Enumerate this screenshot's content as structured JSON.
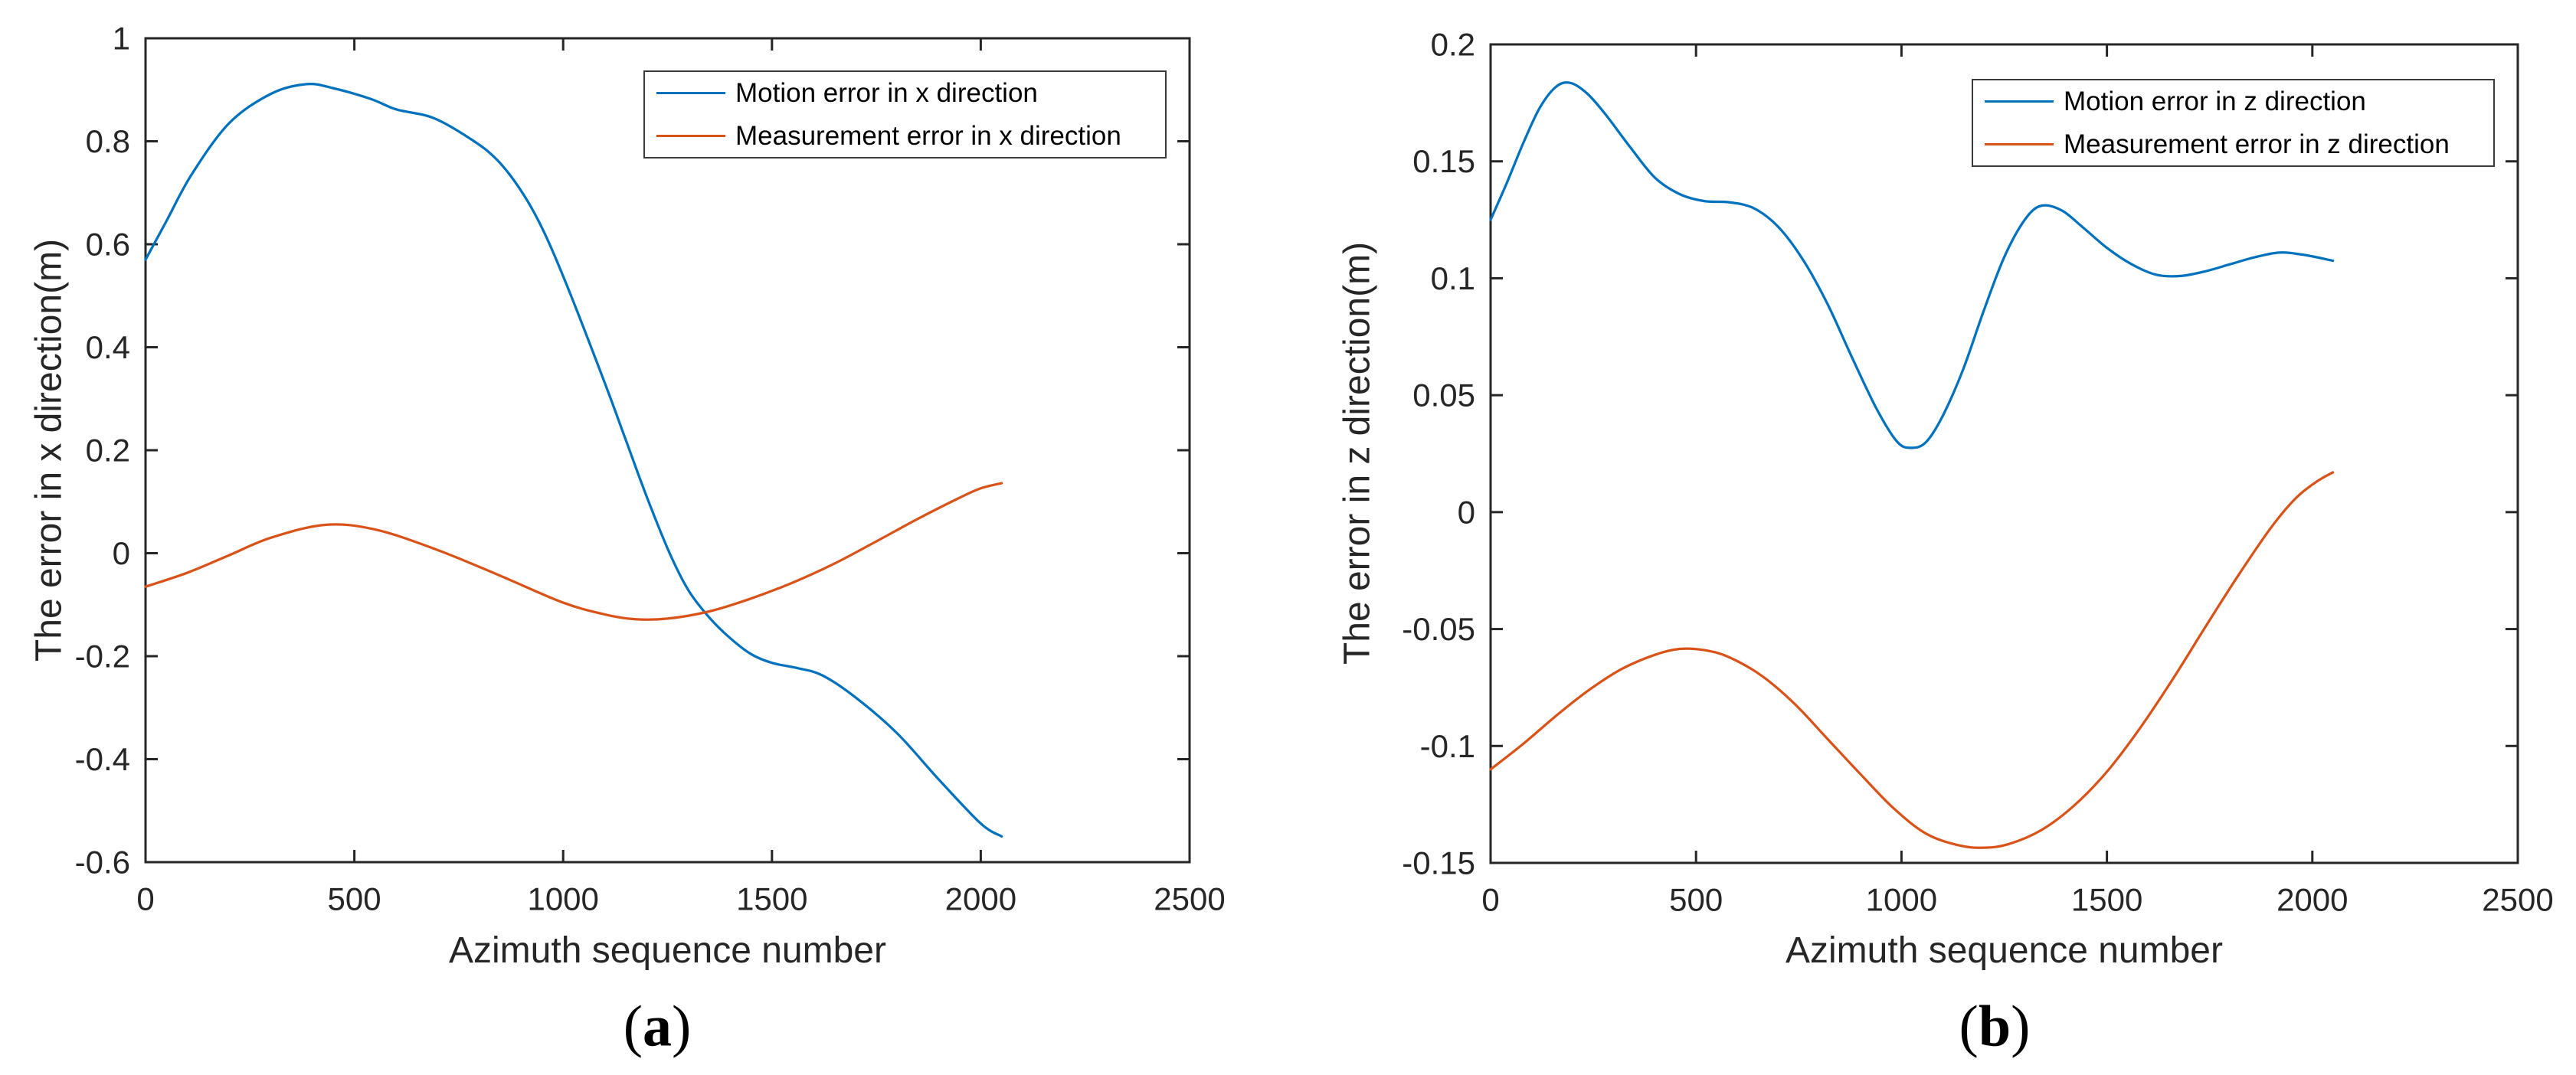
{
  "figure": {
    "background": "#ffffff",
    "panels": [
      {
        "open": "(",
        "letter": "a",
        "close": ")"
      },
      {
        "open": "(",
        "letter": "b",
        "close": ")"
      }
    ]
  },
  "colors": {
    "motion_line": "#0072BD",
    "measurement_line": "#D95319",
    "axis": "#262626",
    "text": "#262626"
  },
  "chart_data": [
    {
      "type": "line",
      "title": "",
      "xlabel": "Azimuth sequence number",
      "ylabel": "The error in x direction(m)",
      "xlim": [
        0,
        2500
      ],
      "ylim": [
        -0.6,
        1
      ],
      "xticks": [
        0,
        500,
        1000,
        1500,
        2000,
        2500
      ],
      "yticks": [
        -0.6,
        -0.4,
        -0.2,
        0,
        0.2,
        0.4,
        0.6,
        0.8,
        1
      ],
      "grid": false,
      "legend_position": "top-right",
      "series": [
        {
          "name": "Motion error in x direction",
          "color": "#0072BD",
          "points": [
            [
              0,
              0.57
            ],
            [
              50,
              0.645
            ],
            [
              110,
              0.735
            ],
            [
              200,
              0.835
            ],
            [
              300,
              0.892
            ],
            [
              385,
              0.911
            ],
            [
              450,
              0.903
            ],
            [
              540,
              0.882
            ],
            [
              600,
              0.862
            ],
            [
              690,
              0.845
            ],
            [
              783,
              0.802
            ],
            [
              844,
              0.762
            ],
            [
              904,
              0.698
            ],
            [
              954,
              0.624
            ],
            [
              1014,
              0.51
            ],
            [
              1100,
              0.33
            ],
            [
              1150,
              0.22
            ],
            [
              1200,
              0.11
            ],
            [
              1255,
              0.0
            ],
            [
              1300,
              -0.072
            ],
            [
              1350,
              -0.125
            ],
            [
              1400,
              -0.165
            ],
            [
              1450,
              -0.196
            ],
            [
              1500,
              -0.213
            ],
            [
              1560,
              -0.223
            ],
            [
              1620,
              -0.237
            ],
            [
              1700,
              -0.28
            ],
            [
              1800,
              -0.35
            ],
            [
              1900,
              -0.44
            ],
            [
              2000,
              -0.525
            ],
            [
              2050,
              -0.55
            ]
          ]
        },
        {
          "name": "Measurement error in x direction",
          "color": "#D95319",
          "points": [
            [
              0,
              -0.065
            ],
            [
              100,
              -0.038
            ],
            [
              200,
              -0.004
            ],
            [
              300,
              0.03
            ],
            [
              430,
              0.055
            ],
            [
              550,
              0.046
            ],
            [
              700,
              0.006
            ],
            [
              850,
              -0.044
            ],
            [
              1000,
              -0.096
            ],
            [
              1100,
              -0.119
            ],
            [
              1170,
              -0.128
            ],
            [
              1250,
              -0.127
            ],
            [
              1350,
              -0.113
            ],
            [
              1450,
              -0.088
            ],
            [
              1550,
              -0.057
            ],
            [
              1650,
              -0.02
            ],
            [
              1750,
              0.023
            ],
            [
              1850,
              0.067
            ],
            [
              1950,
              0.108
            ],
            [
              2000,
              0.126
            ],
            [
              2050,
              0.136
            ]
          ]
        }
      ]
    },
    {
      "type": "line",
      "title": "",
      "xlabel": "Azimuth sequence number",
      "ylabel": "The error in z direction(m)",
      "xlim": [
        0,
        2500
      ],
      "ylim": [
        -0.15,
        0.2
      ],
      "xticks": [
        0,
        500,
        1000,
        1500,
        2000,
        2500
      ],
      "yticks": [
        -0.15,
        -0.1,
        -0.05,
        0,
        0.05,
        0.1,
        0.15,
        0.2
      ],
      "grid": false,
      "legend_position": "top-right",
      "series": [
        {
          "name": "Motion error in z direction",
          "color": "#0072BD",
          "points": [
            [
              0,
              0.125
            ],
            [
              40,
              0.141
            ],
            [
              80,
              0.158
            ],
            [
              120,
              0.173
            ],
            [
              160,
              0.182
            ],
            [
              195,
              0.1835
            ],
            [
              235,
              0.179
            ],
            [
              280,
              0.17
            ],
            [
              340,
              0.156
            ],
            [
              400,
              0.143
            ],
            [
              460,
              0.136
            ],
            [
              520,
              0.133
            ],
            [
              580,
              0.1325
            ],
            [
              640,
              0.13
            ],
            [
              700,
              0.122
            ],
            [
              760,
              0.108
            ],
            [
              820,
              0.089
            ],
            [
              880,
              0.066
            ],
            [
              940,
              0.044
            ],
            [
              990,
              0.03
            ],
            [
              1025,
              0.0275
            ],
            [
              1060,
              0.03
            ],
            [
              1100,
              0.041
            ],
            [
              1150,
              0.061
            ],
            [
              1200,
              0.086
            ],
            [
              1250,
              0.109
            ],
            [
              1300,
              0.125
            ],
            [
              1340,
              0.131
            ],
            [
              1390,
              0.129
            ],
            [
              1440,
              0.122
            ],
            [
              1500,
              0.113
            ],
            [
              1560,
              0.106
            ],
            [
              1620,
              0.1015
            ],
            [
              1680,
              0.101
            ],
            [
              1740,
              0.103
            ],
            [
              1800,
              0.106
            ],
            [
              1860,
              0.109
            ],
            [
              1920,
              0.111
            ],
            [
              1980,
              0.11
            ],
            [
              2050,
              0.1075
            ]
          ]
        },
        {
          "name": "Measurement error in z direction",
          "color": "#D95319",
          "points": [
            [
              0,
              -0.11
            ],
            [
              80,
              -0.099
            ],
            [
              160,
              -0.087
            ],
            [
              240,
              -0.076
            ],
            [
              320,
              -0.067
            ],
            [
              400,
              -0.061
            ],
            [
              460,
              -0.0585
            ],
            [
              520,
              -0.059
            ],
            [
              580,
              -0.062
            ],
            [
              660,
              -0.07
            ],
            [
              740,
              -0.082
            ],
            [
              820,
              -0.097
            ],
            [
              900,
              -0.112
            ],
            [
              980,
              -0.1265
            ],
            [
              1060,
              -0.1375
            ],
            [
              1140,
              -0.1425
            ],
            [
              1200,
              -0.1435
            ],
            [
              1260,
              -0.142
            ],
            [
              1340,
              -0.136
            ],
            [
              1420,
              -0.1255
            ],
            [
              1500,
              -0.111
            ],
            [
              1580,
              -0.0925
            ],
            [
              1660,
              -0.0715
            ],
            [
              1740,
              -0.049
            ],
            [
              1820,
              -0.027
            ],
            [
              1900,
              -0.0065
            ],
            [
              1960,
              0.006
            ],
            [
              2010,
              0.013
            ],
            [
              2050,
              0.017
            ]
          ]
        }
      ]
    }
  ]
}
